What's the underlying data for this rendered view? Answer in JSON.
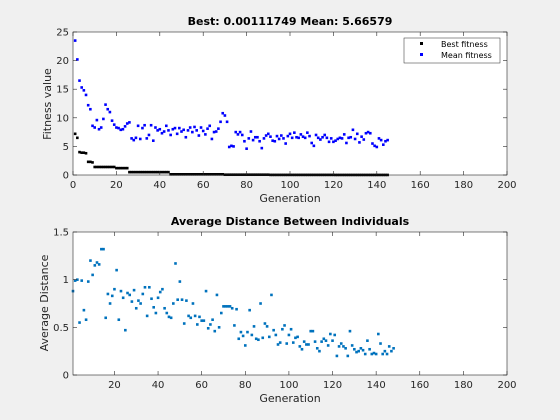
{
  "chart_data": [
    {
      "type": "scatter",
      "title": "Best: 0.00111749 Mean: 5.66579",
      "xlabel": "Generation",
      "ylabel": "Fitness value",
      "xlim": [
        0,
        200
      ],
      "ylim": [
        0,
        25
      ],
      "xticks": [
        0,
        20,
        40,
        60,
        80,
        100,
        120,
        140,
        160,
        180,
        200
      ],
      "yticks": [
        0,
        5,
        10,
        15,
        20,
        25
      ],
      "legend_position": "top-right",
      "series": [
        {
          "name": "Best fitness",
          "color": "#000000",
          "y": [
            7.2,
            6.5,
            4.0,
            3.9,
            3.9,
            3.8,
            2.3,
            2.3,
            2.2,
            1.4,
            1.4,
            1.4,
            1.4,
            1.4,
            1.4,
            1.4,
            1.4,
            1.4,
            1.4,
            1.2,
            1.2,
            1.2,
            1.2,
            1.2,
            1.2,
            0.5,
            0.5,
            0.5,
            0.5,
            0.5,
            0.5,
            0.5,
            0.5,
            0.5,
            0.5,
            0.5,
            0.5,
            0.5,
            0.5,
            0.5,
            0.5,
            0.5,
            0.5,
            0.5,
            0.12,
            0.12,
            0.12,
            0.12,
            0.12,
            0.12,
            0.12,
            0.12,
            0.12,
            0.12,
            0.12,
            0.12,
            0.12,
            0.12,
            0.12,
            0.12,
            0.12,
            0.12,
            0.12,
            0.12,
            0.12,
            0.12,
            0.12,
            0.12,
            0.12,
            0.05,
            0.05,
            0.05,
            0.05,
            0.05,
            0.05,
            0.05,
            0.05,
            0.05,
            0.05,
            0.05,
            0.05,
            0.05,
            0.05,
            0.05,
            0.05,
            0.05,
            0.05,
            0.05,
            0.05,
            0.05,
            0.02,
            0.02,
            0.02,
            0.02,
            0.02,
            0.02,
            0.02,
            0.02,
            0.02,
            0.02,
            0.02,
            0.02,
            0.02,
            0.02,
            0.02,
            0.02,
            0.02,
            0.02,
            0.02,
            0.02,
            0.02,
            0.02,
            0.02,
            0.02,
            0.02,
            0.02,
            0.02,
            0.02,
            0.02,
            0.02,
            0.01,
            0.01,
            0.01,
            0.01,
            0.01,
            0.01,
            0.01,
            0.01,
            0.01,
            0.01,
            0.01,
            0.01,
            0.01,
            0.01,
            0.01,
            0.01,
            0.01,
            0.01,
            0.01,
            0.01,
            0.01,
            0.01,
            0.01,
            0.01,
            0.01
          ]
        },
        {
          "name": "Mean fitness",
          "color": "#0000ff",
          "y": [
            23.5,
            20.2,
            16.5,
            15.3,
            14.8,
            14.0,
            12.2,
            11.5,
            8.6,
            8.3,
            9.6,
            8.0,
            8.3,
            9.8,
            12.3,
            11.5,
            11.0,
            9.5,
            8.8,
            8.3,
            8.2,
            7.9,
            8.0,
            8.5,
            9.0,
            9.2,
            6.4,
            6.1,
            6.5,
            8.6,
            6.3,
            8.2,
            8.7,
            6.4,
            7.0,
            8.7,
            6.0,
            8.3,
            7.8,
            8.0,
            7.3,
            7.6,
            8.6,
            7.8,
            7.0,
            8.0,
            8.2,
            7.2,
            8.2,
            7.6,
            7.9,
            6.6,
            7.8,
            8.3,
            7.5,
            8.4,
            7.8,
            6.9,
            8.3,
            7.7,
            7.1,
            8.1,
            8.6,
            6.3,
            7.5,
            7.6,
            8.1,
            9.3,
            10.8,
            10.4,
            9.3,
            4.9,
            5.1,
            5.0,
            7.5,
            7.1,
            7.5,
            7.0,
            5.9,
            4.6,
            6.4,
            7.6,
            6.1,
            6.6,
            6.6,
            5.9,
            4.7,
            6.4,
            6.9,
            7.2,
            6.7,
            6.0,
            5.9,
            6.8,
            6.3,
            6.9,
            6.4,
            5.5,
            6.8,
            7.2,
            6.5,
            7.4,
            6.6,
            6.5,
            7.1,
            6.7,
            6.5,
            7.4,
            6.8,
            5.6,
            5.1,
            7.0,
            6.5,
            6.2,
            6.6,
            7.0,
            6.5,
            5.8,
            6.4,
            5.8,
            6.0,
            6.3,
            6.5,
            6.4,
            7.1,
            5.6,
            6.5,
            6.6,
            7.9,
            6.3,
            7.2,
            5.7,
            6.7,
            6.2,
            7.3,
            7.5,
            7.3,
            5.5,
            5.1,
            4.9,
            6.4,
            6.1,
            5.3,
            5.9,
            6.1
          ]
        }
      ]
    },
    {
      "type": "scatter",
      "title": "Average Distance Between Individuals",
      "xlabel": "Generation",
      "ylabel": "Average Distance",
      "xlim": [
        1,
        200
      ],
      "ylim": [
        0,
        1.5
      ],
      "xticks": [
        20,
        40,
        60,
        80,
        100,
        120,
        140,
        160,
        180,
        200
      ],
      "yticks": [
        0,
        0.5,
        1,
        1.5
      ],
      "series": [
        {
          "name": "",
          "color": "#0072bd",
          "y": [
            0.88,
            0.99,
            1.0,
            0.55,
            0.99,
            0.68,
            0.58,
            0.98,
            1.2,
            1.05,
            1.15,
            1.18,
            1.16,
            1.32,
            1.32,
            0.6,
            0.85,
            0.75,
            0.83,
            0.9,
            1.1,
            0.58,
            0.88,
            0.81,
            0.47,
            0.86,
            0.84,
            0.77,
            0.89,
            0.7,
            0.78,
            0.75,
            0.85,
            0.92,
            0.62,
            0.92,
            0.8,
            0.71,
            0.65,
            0.81,
            0.87,
            0.9,
            0.7,
            0.65,
            0.61,
            0.6,
            0.75,
            1.17,
            0.79,
            0.98,
            0.79,
            0.54,
            0.78,
            0.62,
            0.6,
            0.75,
            0.62,
            0.53,
            0.61,
            0.57,
            0.57,
            0.88,
            0.49,
            0.53,
            0.58,
            0.46,
            0.84,
            0.5,
            0.65,
            0.72,
            0.72,
            0.72,
            0.72,
            0.7,
            0.52,
            0.69,
            0.38,
            0.45,
            0.41,
            0.31,
            0.45,
            0.68,
            0.42,
            0.51,
            0.38,
            0.37,
            0.75,
            0.39,
            0.54,
            0.51,
            0.4,
            0.84,
            0.47,
            0.42,
            0.32,
            0.34,
            0.48,
            0.52,
            0.33,
            0.42,
            0.48,
            0.34,
            0.39,
            0.4,
            0.3,
            0.27,
            0.35,
            0.32,
            0.32,
            0.46,
            0.46,
            0.35,
            0.28,
            0.25,
            0.35,
            0.38,
            0.36,
            0.31,
            0.43,
            0.36,
            0.42,
            0.2,
            0.3,
            0.33,
            0.3,
            0.28,
            0.2,
            0.46,
            0.31,
            0.27,
            0.24,
            0.25,
            0.28,
            0.26,
            0.22,
            0.36,
            0.27,
            0.22,
            0.23,
            0.22,
            0.43,
            0.33,
            0.22,
            0.25,
            0.22,
            0.3,
            0.25,
            0.28
          ]
        }
      ]
    }
  ]
}
